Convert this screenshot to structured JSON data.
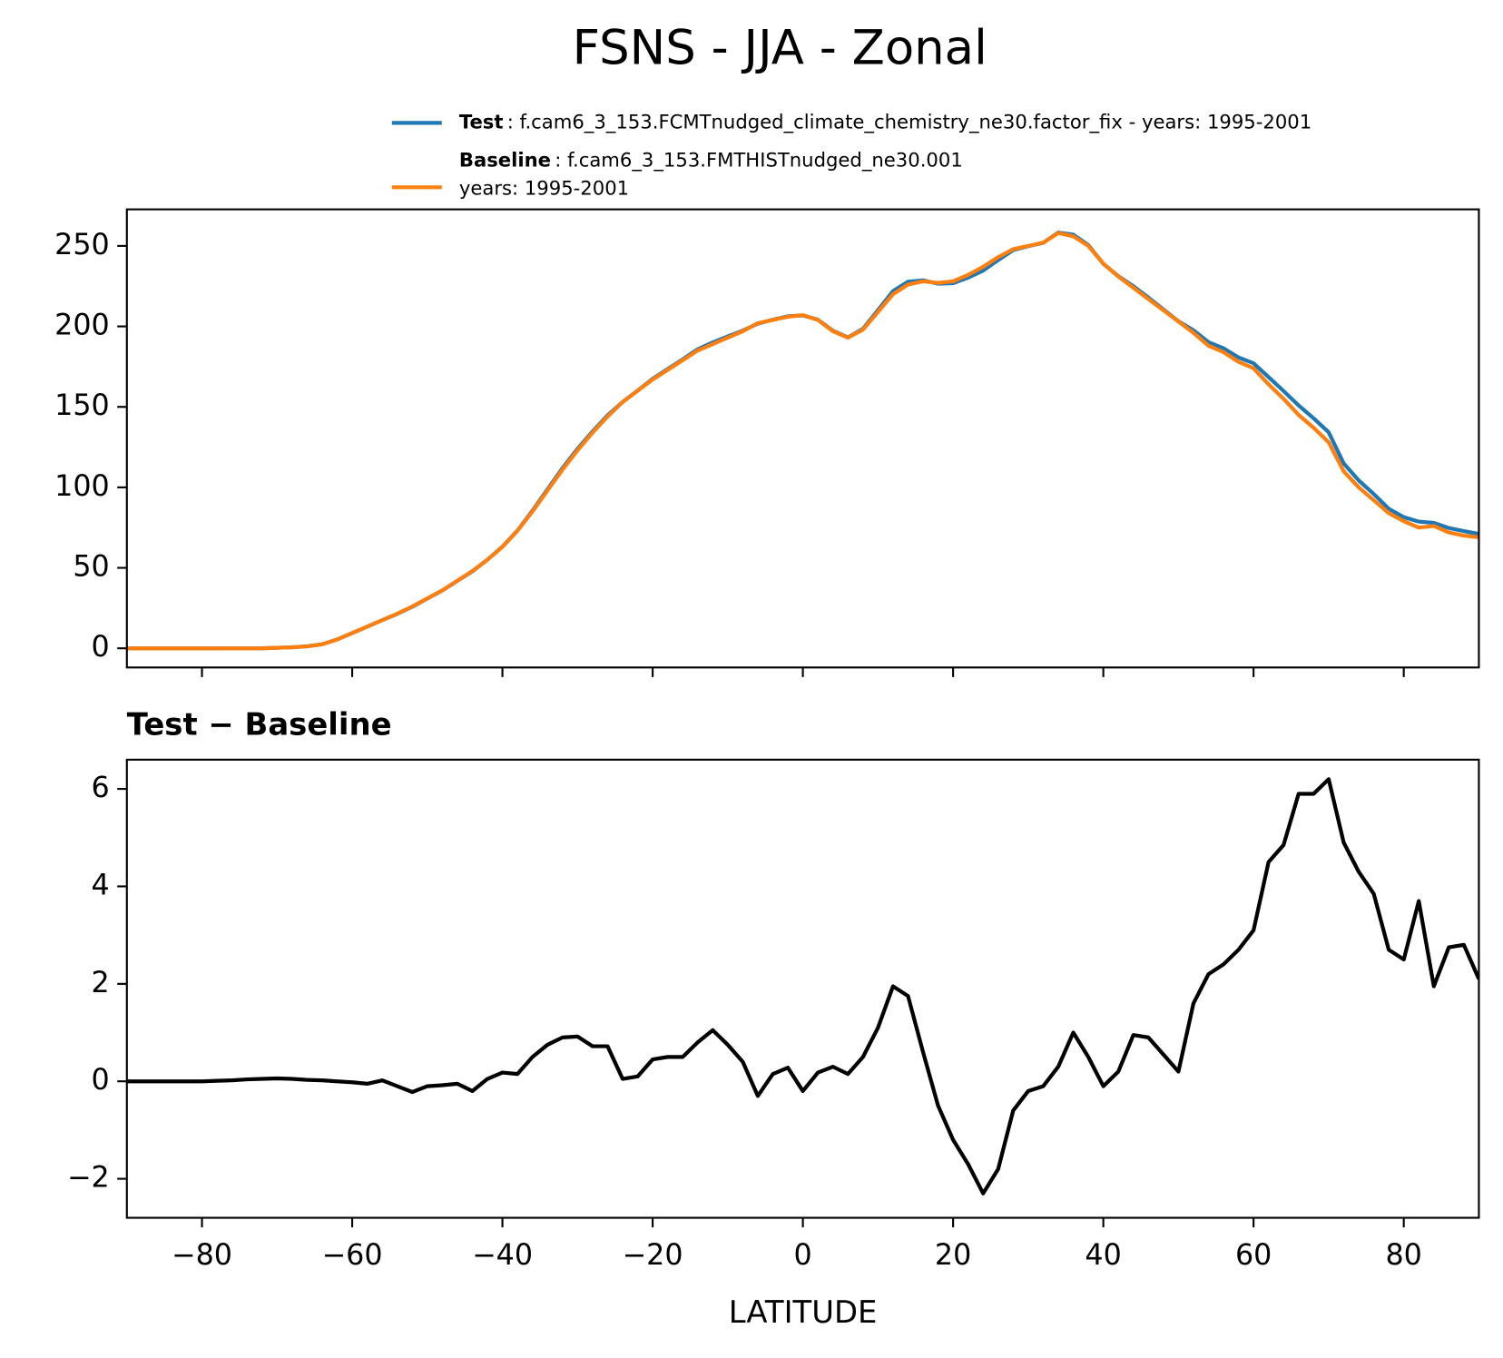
{
  "title": "FSNS - JJA - Zonal",
  "chart_data": [
    {
      "type": "line",
      "x": [
        -90,
        -88,
        -86,
        -84,
        -82,
        -80,
        -78,
        -76,
        -74,
        -72,
        -70,
        -68,
        -66,
        -64,
        -62,
        -60,
        -58,
        -56,
        -54,
        -52,
        -50,
        -48,
        -46,
        -44,
        -42,
        -40,
        -38,
        -36,
        -34,
        -32,
        -30,
        -28,
        -26,
        -24,
        -22,
        -20,
        -18,
        -16,
        -14,
        -12,
        -10,
        -8,
        -6,
        -4,
        -2,
        0,
        2,
        4,
        6,
        8,
        10,
        12,
        14,
        16,
        18,
        20,
        22,
        24,
        26,
        28,
        30,
        32,
        34,
        36,
        38,
        40,
        42,
        44,
        46,
        48,
        50,
        52,
        54,
        56,
        58,
        60,
        62,
        64,
        66,
        68,
        70,
        72,
        74,
        76,
        78,
        80,
        82,
        84,
        86,
        88,
        90
      ],
      "series": [
        {
          "name": "Test",
          "description": [
            ": f.cam6_3_153.FCMTnudged_climate_chemistry_ne30.factor_fix - years: 1995-2001"
          ],
          "color": "#1f77b4",
          "values": [
            0,
            0,
            0,
            0,
            0,
            0,
            0.01,
            0.02,
            0.04,
            0.05,
            0.36,
            0.65,
            1.23,
            2.52,
            5.5,
            9.48,
            13.45,
            17.52,
            21.4,
            25.78,
            30.9,
            35.92,
            41.95,
            47.8,
            55.05,
            63.18,
            73.15,
            85.5,
            98.75,
            111.9,
            123.92,
            134.72,
            144.72,
            153.05,
            160.1,
            167.45,
            173.5,
            179.5,
            185.8,
            190.05,
            193.75,
            197.4,
            201.7,
            204.15,
            206.28,
            206.8,
            204.18,
            197.3,
            193.15,
            198.5,
            210.1,
            221.95,
            227.75,
            228.6,
            226.5,
            226.8,
            230.3,
            234.7,
            241.2,
            247.4,
            249.8,
            251.9,
            258.3,
            257,
            250.5,
            238.9,
            231.2,
            224.95,
            217.9,
            210.55,
            203.2,
            197.6,
            190.2,
            186.4,
            180.7,
            177.1,
            168.5,
            159.85,
            150.9,
            142.9,
            134.2,
            114.9,
            104.3,
            95.85,
            86.7,
            81.5,
            78.7,
            77.95,
            74.75,
            72.8,
            71.1
          ]
        },
        {
          "name": "Baseline",
          "description": [
            ": f.cam6_3_153.FMTHISTnudged_ne30.001",
            "years: 1995-2001"
          ],
          "color": "#ff7f0e",
          "values": [
            0,
            0,
            0,
            0,
            0,
            0,
            0,
            0,
            0,
            0,
            0.3,
            0.6,
            1.2,
            2.5,
            5.5,
            9.5,
            13.5,
            17.5,
            21.5,
            26,
            31,
            36,
            42,
            48,
            55,
            63,
            73,
            85,
            98,
            111,
            123,
            134,
            144,
            153,
            160,
            167,
            173,
            179,
            185,
            189,
            193,
            197,
            202,
            204,
            206,
            207,
            204,
            197,
            193,
            198,
            209,
            220,
            226,
            228,
            227,
            228,
            232,
            237,
            243,
            248,
            250,
            252,
            258,
            256,
            250,
            239,
            231,
            224,
            217,
            210,
            203,
            196,
            188,
            184,
            178,
            174,
            164,
            155,
            145,
            137,
            128,
            110,
            100,
            92,
            84,
            79,
            75,
            76,
            72,
            70,
            69
          ]
        }
      ],
      "xlim": [
        -90,
        90
      ],
      "xticks": [
        -80,
        -60,
        -40,
        -20,
        0,
        20,
        40,
        60,
        80
      ],
      "ylim": [
        -11.9,
        272.7
      ],
      "yticks": [
        0,
        50,
        100,
        150,
        200,
        250
      ]
    },
    {
      "type": "line",
      "subtitle": "Test − Baseline",
      "xlabel": "LATITUDE",
      "color": "#000000",
      "x": [
        -90,
        -88,
        -86,
        -84,
        -82,
        -80,
        -78,
        -76,
        -74,
        -72,
        -70,
        -68,
        -66,
        -64,
        -62,
        -60,
        -58,
        -56,
        -54,
        -52,
        -50,
        -48,
        -46,
        -44,
        -42,
        -40,
        -38,
        -36,
        -34,
        -32,
        -30,
        -28,
        -26,
        -24,
        -22,
        -20,
        -18,
        -16,
        -14,
        -12,
        -10,
        -8,
        -6,
        -4,
        -2,
        0,
        2,
        4,
        6,
        8,
        10,
        12,
        14,
        16,
        18,
        20,
        22,
        24,
        26,
        28,
        30,
        32,
        34,
        36,
        38,
        40,
        42,
        44,
        46,
        48,
        50,
        52,
        54,
        56,
        58,
        60,
        62,
        64,
        66,
        68,
        70,
        72,
        74,
        76,
        78,
        80,
        82,
        84,
        86,
        88,
        90
      ],
      "values": [
        0,
        0,
        0,
        0,
        0,
        0,
        0.01,
        0.02,
        0.04,
        0.05,
        0.06,
        0.05,
        0.03,
        0.02,
        0,
        -0.02,
        -0.05,
        0.02,
        -0.1,
        -0.22,
        -0.1,
        -0.08,
        -0.05,
        -0.2,
        0.05,
        0.18,
        0.15,
        0.5,
        0.75,
        0.9,
        0.92,
        0.72,
        0.72,
        0.05,
        0.1,
        0.45,
        0.5,
        0.5,
        0.8,
        1.05,
        0.75,
        0.4,
        -0.3,
        0.15,
        0.28,
        -0.2,
        0.18,
        0.3,
        0.15,
        0.5,
        1.1,
        1.95,
        1.75,
        0.6,
        -0.5,
        -1.2,
        -1.7,
        -2.3,
        -1.8,
        -0.6,
        -0.2,
        -0.1,
        0.3,
        1.0,
        0.5,
        -0.1,
        0.2,
        0.95,
        0.9,
        0.55,
        0.2,
        1.6,
        2.2,
        2.4,
        2.7,
        3.1,
        4.5,
        4.85,
        5.9,
        5.9,
        6.2,
        4.9,
        4.3,
        3.85,
        2.7,
        2.5,
        3.7,
        1.95,
        2.75,
        2.8,
        2.1
      ],
      "xlim": [
        -90,
        90
      ],
      "xticks": [
        {
          "value": -80,
          "label": "−80"
        },
        {
          "value": -60,
          "label": "−60"
        },
        {
          "value": -40,
          "label": "−40"
        },
        {
          "value": -20,
          "label": "−20"
        },
        0,
        20,
        40,
        60,
        80
      ],
      "ylim": [
        -2.8,
        6.6
      ],
      "yticks": [
        {
          "value": -2,
          "label": "−2"
        },
        0,
        2,
        4,
        6
      ]
    }
  ]
}
